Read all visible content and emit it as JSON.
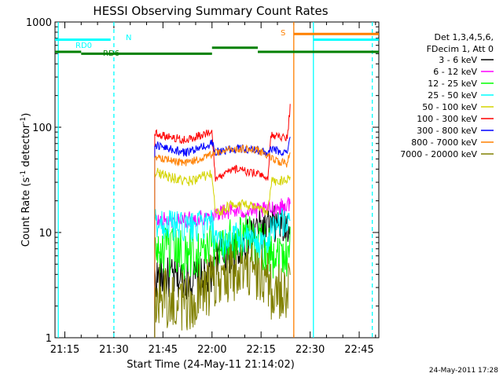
{
  "chart_data": {
    "type": "line",
    "title": "HESSI Observing Summary Count Rates",
    "xlabel": "Start Time (24-May-11 21:14:02)",
    "ylabel_main": "Count Rate (s",
    "ylabel_sup1": "-1",
    "ylabel_mid": " detector",
    "ylabel_sup2": "-1",
    "ylabel_end": ")",
    "y_scale": "log",
    "ylim": [
      1,
      1000
    ],
    "xlim_minutes": [
      -2,
      97
    ],
    "x_ticks": [
      {
        "label": "21:15",
        "m": 1
      },
      {
        "label": "21:30",
        "m": 16
      },
      {
        "label": "21:45",
        "m": 31
      },
      {
        "label": "22:00",
        "m": 46
      },
      {
        "label": "22:15",
        "m": 61
      },
      {
        "label": "22:30",
        "m": 76
      },
      {
        "label": "22:45",
        "m": 91
      }
    ],
    "y_ticks": [
      {
        "label": "1",
        "v": 1
      },
      {
        "label": "10",
        "v": 10
      },
      {
        "label": "100",
        "v": 100
      },
      {
        "label": "1000",
        "v": 1000
      }
    ],
    "legend_placement": "right",
    "legend_header": [
      "Det 1,3,4,5,6,",
      "FDecim 1, Att 0"
    ],
    "series": [
      {
        "name": "3 - 6 keV",
        "color": "#000000",
        "noise": 0.2,
        "values": [
          [
            28.5,
            3.7
          ],
          [
            46,
            3.6
          ],
          [
            47,
            6.2
          ],
          [
            53,
            6.3
          ],
          [
            60,
            11
          ],
          [
            63,
            11
          ],
          [
            64,
            11.5
          ],
          [
            69,
            11.8
          ],
          [
            70,
            13
          ]
        ]
      },
      {
        "name": "6 - 12 keV",
        "color": "#ff00ff",
        "noise": 0.08,
        "values": [
          [
            28.5,
            13
          ],
          [
            38,
            13
          ],
          [
            46,
            14.5
          ],
          [
            47,
            15.5
          ],
          [
            53,
            16
          ],
          [
            60,
            16
          ],
          [
            63,
            16.5
          ],
          [
            64,
            17
          ],
          [
            69,
            18
          ],
          [
            70,
            20
          ]
        ]
      },
      {
        "name": "12 - 25 keV",
        "color": "#00ff00",
        "noise": 0.25,
        "values": [
          [
            28.5,
            6.5
          ],
          [
            38,
            6.2
          ],
          [
            46,
            7
          ],
          [
            47,
            7.5
          ],
          [
            53,
            9
          ],
          [
            60,
            8
          ],
          [
            63,
            7.5
          ],
          [
            64,
            6.5
          ],
          [
            69,
            6.5
          ],
          [
            70,
            8
          ]
        ]
      },
      {
        "name": "25 - 50 keV",
        "color": "#00ffff",
        "noise": 0.15,
        "values": [
          [
            28.5,
            12.5
          ],
          [
            38,
            11
          ],
          [
            46,
            12
          ],
          [
            47,
            7.5
          ],
          [
            53,
            9
          ],
          [
            60,
            8
          ],
          [
            63,
            7.5
          ],
          [
            64,
            12
          ],
          [
            69,
            12.5
          ],
          [
            70,
            14
          ]
        ]
      },
      {
        "name": "50 - 100 keV",
        "color": "#d4d400",
        "noise": 0.05,
        "values": [
          [
            28.5,
            38
          ],
          [
            38,
            30
          ],
          [
            46,
            36
          ],
          [
            47,
            15
          ],
          [
            53,
            19
          ],
          [
            60,
            17
          ],
          [
            63,
            15
          ],
          [
            64,
            30
          ],
          [
            69,
            32
          ],
          [
            70,
            36
          ]
        ]
      },
      {
        "name": "100 - 300 keV",
        "color": "#ff0000",
        "noise": 0.04,
        "values": [
          [
            28.5,
            88
          ],
          [
            38,
            75
          ],
          [
            46,
            92
          ],
          [
            47,
            32
          ],
          [
            53,
            40
          ],
          [
            60,
            36
          ],
          [
            63,
            31
          ],
          [
            64,
            84
          ],
          [
            69,
            80
          ],
          [
            70,
            170
          ]
        ]
      },
      {
        "name": "300 - 800 keV",
        "color": "#0000ff",
        "noise": 0.04,
        "values": [
          [
            28.5,
            68
          ],
          [
            38,
            57
          ],
          [
            46,
            70
          ],
          [
            47,
            58
          ],
          [
            53,
            63
          ],
          [
            60,
            61
          ],
          [
            63,
            55
          ],
          [
            64,
            62
          ],
          [
            69,
            57
          ],
          [
            70,
            85
          ]
        ]
      },
      {
        "name": "800 - 7000 keV",
        "color": "#ff8000",
        "noise": 0.04,
        "values": [
          [
            28.5,
            53
          ],
          [
            38,
            45
          ],
          [
            46,
            55
          ],
          [
            47,
            57
          ],
          [
            53,
            63
          ],
          [
            60,
            60
          ],
          [
            63,
            54
          ],
          [
            64,
            50
          ],
          [
            69,
            45
          ],
          [
            70,
            60
          ]
        ]
      },
      {
        "name": "7000 - 20000 keV",
        "color": "#808000",
        "noise": 0.3,
        "values": [
          [
            28.5,
            2.6
          ],
          [
            38,
            2.1
          ],
          [
            46,
            3.2
          ],
          [
            47,
            3.7
          ],
          [
            53,
            4.4
          ],
          [
            60,
            4.3
          ],
          [
            63,
            3.5
          ],
          [
            64,
            2.9
          ],
          [
            69,
            2.6
          ],
          [
            70,
            5
          ]
        ]
      }
    ],
    "state_bars": [
      {
        "label": "RD0",
        "color": "#00ffff",
        "segments": [
          [
            -2,
            15
          ]
        ],
        "level": 680
      },
      {
        "label": "RD6",
        "color": "#008000",
        "segments": [
          [
            -2,
            6
          ],
          [
            6,
            46
          ],
          [
            46,
            60
          ],
          [
            60,
            97
          ]
        ],
        "levels": [
          520,
          500,
          570,
          520,
          570
        ]
      },
      {
        "label": "S",
        "color": "#ff8000",
        "segments": [
          [
            71,
            97
          ]
        ],
        "level": 770
      },
      {
        "label": "N",
        "color": "#00ffff",
        "segments": [
          [
            77,
            97
          ]
        ],
        "level": 680
      }
    ],
    "vertical_lines": [
      {
        "m": -1,
        "color": "#00ffff",
        "dash": false
      },
      {
        "m": 16,
        "color": "#00ffff",
        "dash": true
      },
      {
        "m": 71,
        "color": "#ff8000",
        "dash": false
      },
      {
        "m": 77,
        "color": "#00ffff",
        "dash": false
      },
      {
        "m": 95,
        "color": "#00ffff",
        "dash": true
      }
    ],
    "footer_date": "24-May-2011 17:28"
  }
}
